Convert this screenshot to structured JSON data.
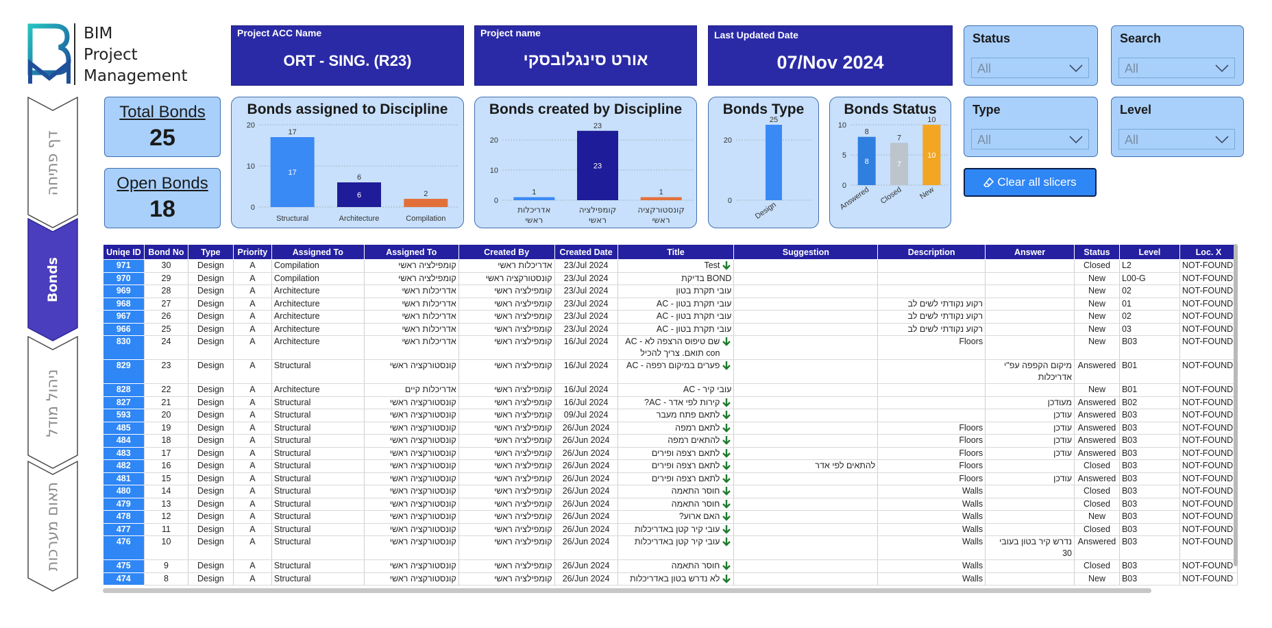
{
  "logo": {
    "line1": "BIM",
    "line2": "Project",
    "line3": "Management"
  },
  "header": {
    "acc": {
      "label": "Project ACC Name",
      "value": "ORT - SING. (R23)"
    },
    "project": {
      "label": "Project name",
      "value": "אורט סינגלובסקי"
    },
    "updated": {
      "label": "Last Updated Date",
      "value": "07/Nov 2024"
    }
  },
  "slicers": {
    "status": {
      "title": "Status",
      "value": "All"
    },
    "search": {
      "title": "Search",
      "value": "All"
    },
    "type": {
      "title": "Type",
      "value": "All"
    },
    "level": {
      "title": "Level",
      "value": "All"
    },
    "clear_label": "Clear all slicers"
  },
  "nav": {
    "home": "דף פתיחה",
    "bonds": "Bonds",
    "model": "ניהול מודל",
    "coordination": "תאום מערכות"
  },
  "kpi": {
    "total": {
      "label": "Total Bonds",
      "value": "25"
    },
    "open": {
      "label": "Open Bonds",
      "value": "18"
    }
  },
  "charts": {
    "assigned": {
      "title": "Bonds assigned to Discipline"
    },
    "created": {
      "title": "Bonds created by Discipline"
    },
    "type": {
      "title": "Bonds Type"
    },
    "status": {
      "title": "Bonds Status"
    }
  },
  "chart_data": [
    {
      "type": "bar",
      "title": "Bonds assigned to Discipline",
      "categories": [
        "Structural",
        "Architecture",
        "Compilation"
      ],
      "values": [
        17,
        6,
        2
      ],
      "colors": [
        "#3a8af5",
        "#1f1c99",
        "#e2703a"
      ],
      "ylim": [
        0,
        20
      ],
      "yticks": [
        0,
        10,
        20
      ],
      "grid": true
    },
    {
      "type": "bar",
      "title": "Bonds created by Discipline",
      "categories": [
        "אדריכלות ראשי",
        "קומפילציה ראשי",
        "קונסטורקציה ראשי"
      ],
      "values": [
        1,
        23,
        1
      ],
      "colors": [
        "#3a8af5",
        "#1f1c99",
        "#e2703a"
      ],
      "ylim": [
        0,
        25
      ],
      "yticks": [
        0,
        10,
        20
      ],
      "grid": true
    },
    {
      "type": "bar",
      "title": "Bonds Type",
      "categories": [
        "Design"
      ],
      "values": [
        25
      ],
      "colors": [
        "#3a8af5"
      ],
      "ylim": [
        0,
        25
      ],
      "yticks": [
        0,
        20
      ],
      "grid": true
    },
    {
      "type": "bar",
      "title": "Bonds Status",
      "categories": [
        "Answered",
        "Closed",
        "New"
      ],
      "values": [
        8,
        7,
        10
      ],
      "colors": [
        "#2f7fe0",
        "#bcc4cc",
        "#f3a623"
      ],
      "ylim": [
        0,
        10
      ],
      "yticks": [
        0,
        5,
        10
      ],
      "grid": true
    }
  ],
  "table": {
    "columns": [
      "Uniqe ID",
      "Bond No",
      "Type",
      "Priority",
      "Assigned To",
      "Assigned To",
      "Created By",
      "Created Date",
      "Title",
      "Suggestion",
      "Description",
      "Answer",
      "Status",
      "Level",
      "Loc. X"
    ],
    "rows": [
      {
        "id": "971",
        "no": "30",
        "type": "Design",
        "pri": "A",
        "to_en": "Compilation",
        "to_he": "קומפילציה ראשי",
        "by": "אדריכלות ראשי",
        "date": "23/Jul 2024",
        "title": "Test",
        "arrow": true,
        "sug": "",
        "desc": "",
        "ans": "",
        "status": "Closed",
        "level": "L2",
        "locx": "NOT-FOUND"
      },
      {
        "id": "970",
        "no": "29",
        "type": "Design",
        "pri": "A",
        "to_en": "Compilation",
        "to_he": "קומפילציה ראשי",
        "by": "קונסטורקציה ראשי",
        "date": "23/Jul 2024",
        "title": "BOND בדיקת",
        "arrow": false,
        "sug": "",
        "desc": "",
        "ans": "",
        "status": "New",
        "level": "L00-G",
        "locx": "NOT-FOUND"
      },
      {
        "id": "969",
        "no": "28",
        "type": "Design",
        "pri": "A",
        "to_en": "Architecture",
        "to_he": "אדריכלות ראשי",
        "by": "קומפילציה ראשי",
        "date": "23/Jul 2024",
        "title": "עובי תקרת בטון",
        "arrow": false,
        "sug": "",
        "desc": "",
        "ans": "",
        "status": "New",
        "level": "02",
        "locx": "NOT-FOUND"
      },
      {
        "id": "968",
        "no": "27",
        "type": "Design",
        "pri": "A",
        "to_en": "Architecture",
        "to_he": "אדריכלות ראשי",
        "by": "קומפילציה ראשי",
        "date": "23/Jul 2024",
        "title": "עובי תקרת בטון - AC",
        "arrow": false,
        "sug": "",
        "desc": "רקוע נקודתי לשים לב",
        "ans": "",
        "status": "New",
        "level": "01",
        "locx": "NOT-FOUND"
      },
      {
        "id": "967",
        "no": "26",
        "type": "Design",
        "pri": "A",
        "to_en": "Architecture",
        "to_he": "אדריכלות ראשי",
        "by": "קומפילציה ראשי",
        "date": "23/Jul 2024",
        "title": "עובי תקרת בטון - AC",
        "arrow": false,
        "sug": "",
        "desc": "רקוע נקודתי לשים לב",
        "ans": "",
        "status": "New",
        "level": "02",
        "locx": "NOT-FOUND"
      },
      {
        "id": "966",
        "no": "25",
        "type": "Design",
        "pri": "A",
        "to_en": "Architecture",
        "to_he": "אדריכלות ראשי",
        "by": "קומפילציה ראשי",
        "date": "23/Jul 2024",
        "title": "עובי תקרת בטון - AC",
        "arrow": false,
        "sug": "",
        "desc": "רקוע נקודתי לשים לב",
        "ans": "",
        "status": "New",
        "level": "03",
        "locx": "NOT-FOUND"
      },
      {
        "id": "830",
        "no": "24",
        "type": "Design",
        "pri": "A",
        "to_en": "Architecture",
        "to_he": "אדריכלות ראשי",
        "by": "קומפילציה ראשי",
        "date": "16/Jul 2024",
        "title": "שם טיפוס הרצפה לא - AC con תואם. צריך להכיל",
        "arrow": true,
        "tall": true,
        "sug": "",
        "desc": "Floors",
        "ans": "",
        "status": "New",
        "level": "B03",
        "locx": "NOT-FOUND"
      },
      {
        "id": "829",
        "no": "23",
        "type": "Design",
        "pri": "A",
        "to_en": "Structural",
        "to_he": "קונסטורקציה ראשי",
        "by": "קומפילציה ראשי",
        "date": "16/Jul 2024",
        "title": "פערים במיקום רפפה - AC",
        "arrow": true,
        "tall": true,
        "sug": "",
        "desc": "",
        "ans": "מיקום הקפפה עפ\"י אדריכלות",
        "status": "Answered",
        "level": "B01",
        "locx": "NOT-FOUND"
      },
      {
        "id": "828",
        "no": "22",
        "type": "Design",
        "pri": "A",
        "to_en": "Architecture",
        "to_he": "אדריכלות קיים",
        "by": "קומפילציה ראשי",
        "date": "16/Jul 2024",
        "title": "עובי קיר - AC",
        "arrow": false,
        "sug": "",
        "desc": "",
        "ans": "",
        "status": "New",
        "level": "B01",
        "locx": "NOT-FOUND"
      },
      {
        "id": "827",
        "no": "21",
        "type": "Design",
        "pri": "A",
        "to_en": "Structural",
        "to_he": "קונסטורקציה ראשי",
        "by": "קומפילציה ראשי",
        "date": "16/Jul 2024",
        "title": "קירות לפי אדר - AC?",
        "arrow": true,
        "sug": "",
        "desc": "",
        "ans": "מעודכן",
        "status": "Answered",
        "level": "B02",
        "locx": "NOT-FOUND"
      },
      {
        "id": "593",
        "no": "20",
        "type": "Design",
        "pri": "A",
        "to_en": "Structural",
        "to_he": "קונסטורקציה ראשי",
        "by": "קומפילציה ראשי",
        "date": "09/Jul 2024",
        "title": "לתאם פתח מעבר",
        "arrow": true,
        "sug": "",
        "desc": "",
        "ans": "עודכן",
        "status": "Answered",
        "level": "B03",
        "locx": "NOT-FOUND"
      },
      {
        "id": "485",
        "no": "19",
        "type": "Design",
        "pri": "A",
        "to_en": "Structural",
        "to_he": "קונסטורקציה ראשי",
        "by": "קומפילציה ראשי",
        "date": "26/Jun 2024",
        "title": "לתאם רמפה",
        "arrow": true,
        "sug": "",
        "desc": "Floors",
        "ans": "עודכן",
        "status": "Answered",
        "level": "B03",
        "locx": "NOT-FOUND"
      },
      {
        "id": "484",
        "no": "18",
        "type": "Design",
        "pri": "A",
        "to_en": "Structural",
        "to_he": "קונסטורקציה ראשי",
        "by": "קומפילציה ראשי",
        "date": "26/Jun 2024",
        "title": "להתאים רמפה",
        "arrow": true,
        "sug": "",
        "desc": "Floors",
        "ans": "עודכן",
        "status": "Answered",
        "level": "B03",
        "locx": "NOT-FOUND"
      },
      {
        "id": "483",
        "no": "17",
        "type": "Design",
        "pri": "A",
        "to_en": "Structural",
        "to_he": "קונסטורקציה ראשי",
        "by": "קומפילציה ראשי",
        "date": "26/Jun 2024",
        "title": "לתאם רצפה ופירים",
        "arrow": true,
        "sug": "",
        "desc": "Floors",
        "ans": "עודכן",
        "status": "Answered",
        "level": "B03",
        "locx": "NOT-FOUND"
      },
      {
        "id": "482",
        "no": "16",
        "type": "Design",
        "pri": "A",
        "to_en": "Structural",
        "to_he": "קונסטורקציה ראשי",
        "by": "קומפילציה ראשי",
        "date": "26/Jun 2024",
        "title": "לתאם רצפה ופירים",
        "arrow": true,
        "sug": "להתאים לפי אדר",
        "desc": "Floors",
        "ans": "",
        "status": "Closed",
        "level": "B03",
        "locx": "NOT-FOUND"
      },
      {
        "id": "481",
        "no": "15",
        "type": "Design",
        "pri": "A",
        "to_en": "Structural",
        "to_he": "קונסטורקציה ראשי",
        "by": "קומפילציה ראשי",
        "date": "26/Jun 2024",
        "title": "לתאם רצפה ופירים",
        "arrow": true,
        "sug": "",
        "desc": "Floors",
        "ans": "עודכן",
        "status": "Answered",
        "level": "B03",
        "locx": "NOT-FOUND"
      },
      {
        "id": "480",
        "no": "14",
        "type": "Design",
        "pri": "A",
        "to_en": "Structural",
        "to_he": "קונסטורקציה ראשי",
        "by": "קומפילציה ראשי",
        "date": "26/Jun 2024",
        "title": "חוסר התאמה",
        "arrow": true,
        "sug": "",
        "desc": "Walls",
        "ans": "",
        "status": "Closed",
        "level": "B03",
        "locx": "NOT-FOUND"
      },
      {
        "id": "479",
        "no": "13",
        "type": "Design",
        "pri": "A",
        "to_en": "Structural",
        "to_he": "קונסטורקציה ראשי",
        "by": "קומפילציה ראשי",
        "date": "26/Jun 2024",
        "title": "חוסר התאמה",
        "arrow": true,
        "sug": "",
        "desc": "Walls",
        "ans": "",
        "status": "Closed",
        "level": "B03",
        "locx": "NOT-FOUND"
      },
      {
        "id": "478",
        "no": "12",
        "type": "Design",
        "pri": "A",
        "to_en": "Structural",
        "to_he": "קונסטורקציה ראשי",
        "by": "קומפילציה ראשי",
        "date": "26/Jun 2024",
        "title": "האם ארוע?",
        "arrow": true,
        "sug": "",
        "desc": "Walls",
        "ans": "",
        "status": "New",
        "level": "B03",
        "locx": "NOT-FOUND"
      },
      {
        "id": "477",
        "no": "11",
        "type": "Design",
        "pri": "A",
        "to_en": "Structural",
        "to_he": "קונסטורקציה ראשי",
        "by": "קומפילציה ראשי",
        "date": "26/Jun 2024",
        "title": "עובי קיר קטן באדריכלות",
        "arrow": true,
        "sug": "",
        "desc": "Walls",
        "ans": "",
        "status": "Closed",
        "level": "B03",
        "locx": "NOT-FOUND"
      },
      {
        "id": "476",
        "no": "10",
        "type": "Design",
        "pri": "A",
        "to_en": "Structural",
        "to_he": "קונסטורקציה ראשי",
        "by": "קומפילציה ראשי",
        "date": "26/Jun 2024",
        "title": "עובי קיר קטן באדריכלות",
        "arrow": true,
        "tall": true,
        "sug": "",
        "desc": "Walls",
        "ans": "נדרש קיר בטון בעובי 30",
        "status": "Answered",
        "level": "B03",
        "locx": "NOT-FOUND"
      },
      {
        "id": "475",
        "no": "9",
        "type": "Design",
        "pri": "A",
        "to_en": "Structural",
        "to_he": "קונסטורקציה ראשי",
        "by": "קומפילציה ראשי",
        "date": "26/Jun 2024",
        "title": "חוסר התאמה",
        "arrow": true,
        "sug": "",
        "desc": "Walls",
        "ans": "",
        "status": "Closed",
        "level": "B03",
        "locx": "NOT-FOUND"
      },
      {
        "id": "474",
        "no": "8",
        "type": "Design",
        "pri": "A",
        "to_en": "Structural",
        "to_he": "קונסטורקציה ראשי",
        "by": "קומפילציה ראשי",
        "date": "26/Jun 2024",
        "title": "לא נדרש בטון באדריכלות",
        "arrow": true,
        "sug": "",
        "desc": "Walls",
        "ans": "",
        "status": "New",
        "level": "B03",
        "locx": "NOT-FOUND"
      }
    ]
  }
}
